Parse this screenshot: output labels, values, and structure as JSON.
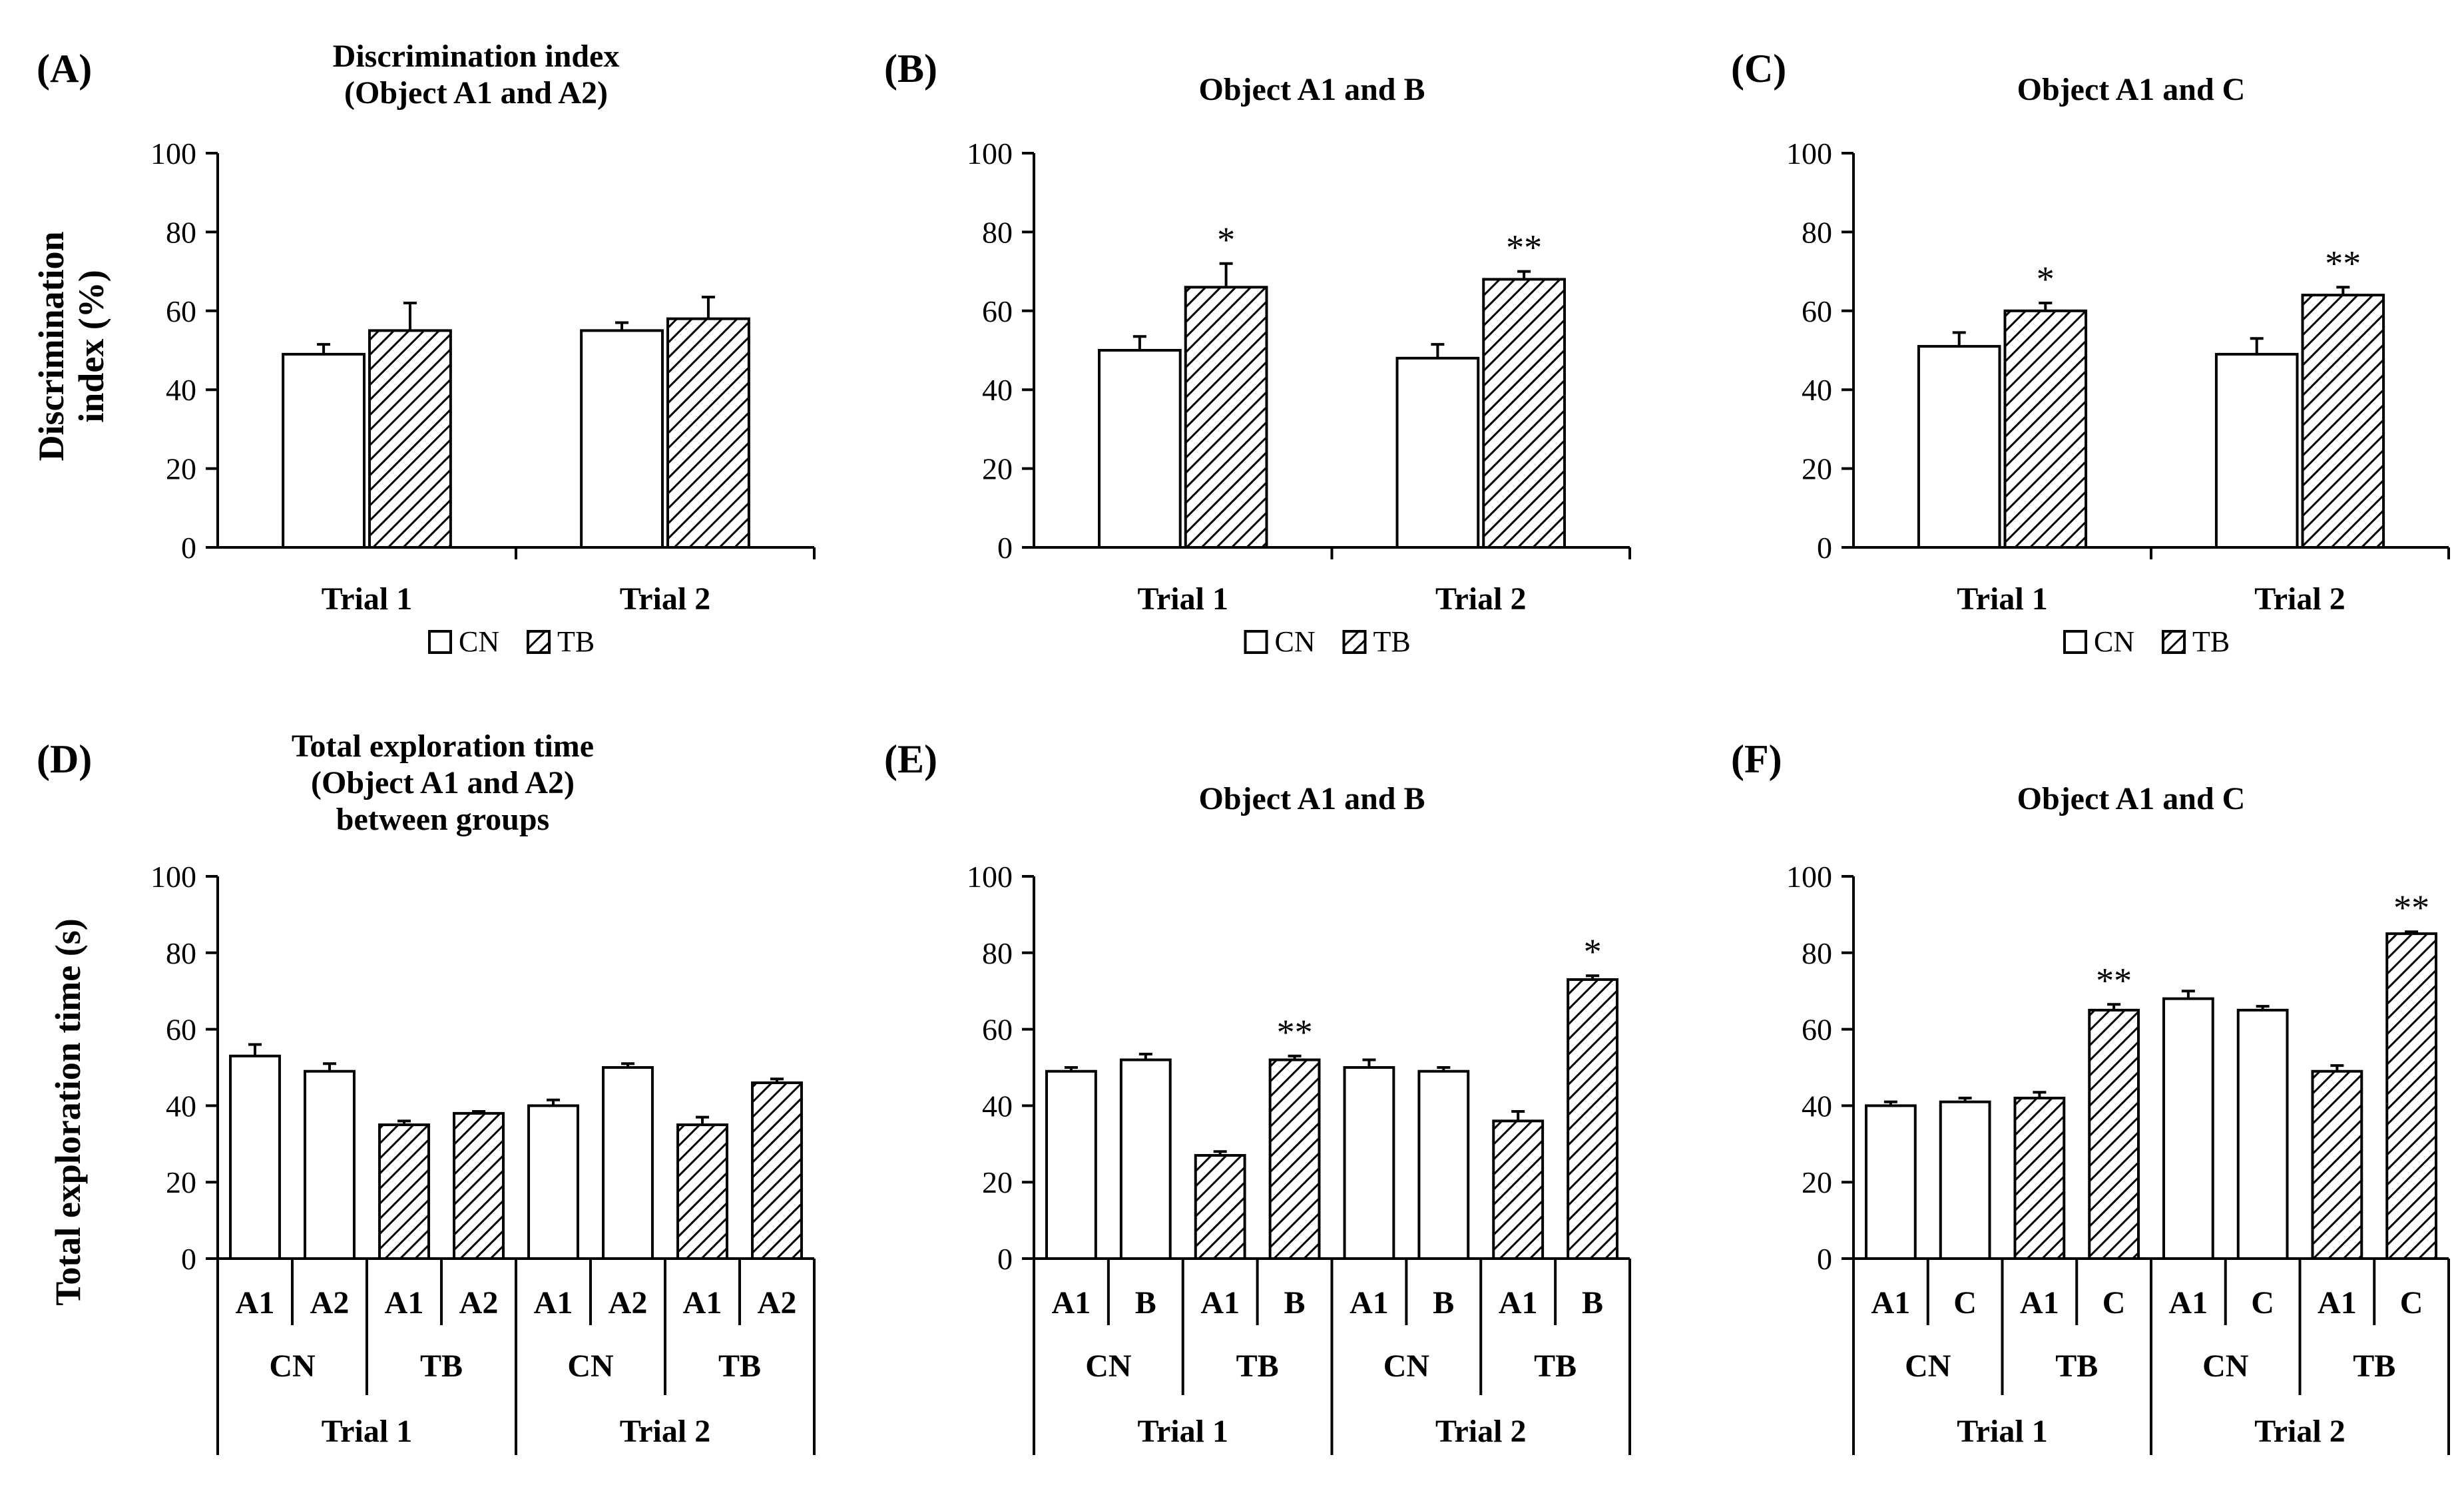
{
  "colors": {
    "cn_fill": "#ffffff",
    "tb_fill": "hatched",
    "stroke": "#000000"
  },
  "legend": {
    "cn": "CN",
    "tb": "TB"
  },
  "chart_data": [
    {
      "panel": "(A)",
      "type": "bar",
      "title": [
        "Discrimination index",
        "(Object A1 and A2)"
      ],
      "ylabel": [
        "Discrimination",
        "index (%)"
      ],
      "ylim": [
        0,
        100
      ],
      "yticks": [
        0,
        20,
        40,
        60,
        80,
        100
      ],
      "categories": [
        "Trial 1",
        "Trial 2"
      ],
      "series": [
        {
          "name": "CN",
          "values": [
            49,
            55
          ],
          "errors": [
            2.5,
            2
          ],
          "sig": [
            "",
            ""
          ]
        },
        {
          "name": "TB",
          "values": [
            55,
            58
          ],
          "errors": [
            7,
            5.5
          ],
          "sig": [
            "",
            ""
          ]
        }
      ]
    },
    {
      "panel": "(B)",
      "type": "bar",
      "title": [
        "Object A1 and B"
      ],
      "ylim": [
        0,
        100
      ],
      "yticks": [
        0,
        20,
        40,
        60,
        80,
        100
      ],
      "categories": [
        "Trial 1",
        "Trial 2"
      ],
      "series": [
        {
          "name": "CN",
          "values": [
            50,
            48
          ],
          "errors": [
            3.5,
            3.5
          ],
          "sig": [
            "",
            ""
          ]
        },
        {
          "name": "TB",
          "values": [
            66,
            68
          ],
          "errors": [
            6,
            2
          ],
          "sig": [
            "*",
            "**"
          ]
        }
      ]
    },
    {
      "panel": "(C)",
      "type": "bar",
      "title": [
        "Object A1 and C"
      ],
      "ylim": [
        0,
        100
      ],
      "yticks": [
        0,
        20,
        40,
        60,
        80,
        100
      ],
      "categories": [
        "Trial 1",
        "Trial 2"
      ],
      "series": [
        {
          "name": "CN",
          "values": [
            51,
            49
          ],
          "errors": [
            3.5,
            4
          ],
          "sig": [
            "",
            ""
          ]
        },
        {
          "name": "TB",
          "values": [
            60,
            64
          ],
          "errors": [
            2,
            2
          ],
          "sig": [
            "*",
            "**"
          ]
        }
      ]
    },
    {
      "panel": "(D)",
      "type": "bar",
      "title": [
        "Total exploration time",
        "(Object A1 and A2)",
        "between groups"
      ],
      "ylabel": [
        "Total exploration time (s)"
      ],
      "ylim": [
        0,
        100
      ],
      "yticks": [
        0,
        20,
        40,
        60,
        80,
        100
      ],
      "objects": [
        "A1",
        "A2",
        "A1",
        "A2",
        "A1",
        "A2",
        "A1",
        "A2"
      ],
      "groups": [
        "CN",
        "TB",
        "CN",
        "TB"
      ],
      "trials": [
        "Trial 1",
        "Trial 2"
      ],
      "values": [
        53,
        49,
        35,
        38,
        40,
        50,
        35,
        46
      ],
      "errors": [
        3,
        2,
        1,
        0.5,
        1.5,
        1,
        2,
        1
      ],
      "fill": [
        "CN",
        "CN",
        "TB",
        "TB",
        "CN",
        "CN",
        "TB",
        "TB"
      ],
      "sig": [
        "",
        "",
        "",
        "",
        "",
        "",
        "",
        ""
      ]
    },
    {
      "panel": "(E)",
      "type": "bar",
      "title": [
        "Object A1 and B"
      ],
      "ylim": [
        0,
        100
      ],
      "yticks": [
        0,
        20,
        40,
        60,
        80,
        100
      ],
      "objects": [
        "A1",
        "B",
        "A1",
        "B",
        "A1",
        "B",
        "A1",
        "B"
      ],
      "groups": [
        "CN",
        "TB",
        "CN",
        "TB"
      ],
      "trials": [
        "Trial 1",
        "Trial 2"
      ],
      "values": [
        49,
        52,
        27,
        52,
        50,
        49,
        36,
        73
      ],
      "errors": [
        1,
        1.5,
        1,
        1,
        2,
        1,
        2.5,
        1
      ],
      "fill": [
        "CN",
        "CN",
        "TB",
        "TB",
        "CN",
        "CN",
        "TB",
        "TB"
      ],
      "sig": [
        "",
        "",
        "",
        "**",
        "",
        "",
        "",
        "*"
      ]
    },
    {
      "panel": "(F)",
      "type": "bar",
      "title": [
        "Object A1 and C"
      ],
      "ylim": [
        0,
        100
      ],
      "yticks": [
        0,
        20,
        40,
        60,
        80,
        100
      ],
      "objects": [
        "A1",
        "C",
        "A1",
        "C",
        "A1",
        "C",
        "A1",
        "C"
      ],
      "groups": [
        "CN",
        "TB",
        "CN",
        "TB"
      ],
      "trials": [
        "Trial 1",
        "Trial 2"
      ],
      "values": [
        40,
        41,
        42,
        65,
        68,
        65,
        49,
        85
      ],
      "errors": [
        1,
        1,
        1.5,
        1.5,
        2,
        1,
        1.5,
        0.5
      ],
      "fill": [
        "CN",
        "CN",
        "TB",
        "TB",
        "CN",
        "CN",
        "TB",
        "TB"
      ],
      "sig": [
        "",
        "",
        "",
        "**",
        "",
        "",
        "",
        "**"
      ]
    }
  ]
}
